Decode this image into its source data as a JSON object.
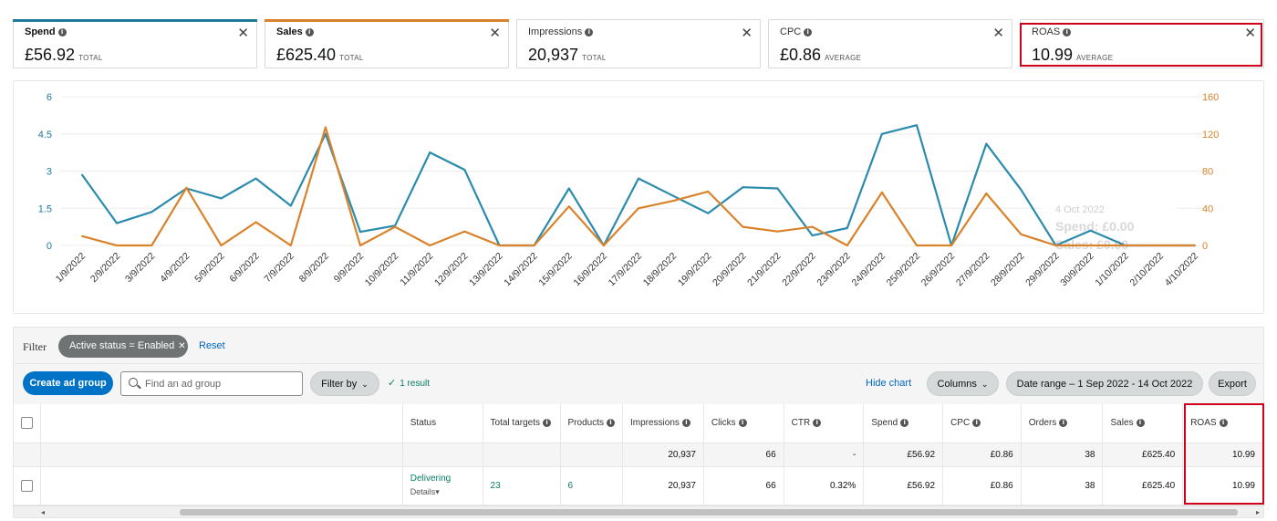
{
  "metrics": [
    {
      "label": "Spend",
      "value": "£56.92",
      "unit": "TOTAL",
      "bold": true,
      "color": "#1f7a9a"
    },
    {
      "label": "Sales",
      "value": "£625.40",
      "unit": "TOTAL",
      "bold": true,
      "color": "#d9822b"
    },
    {
      "label": "Impressions",
      "value": "20,937",
      "unit": "TOTAL",
      "bold": false,
      "color": ""
    },
    {
      "label": "CPC",
      "value": "£0.86",
      "unit": "AVERAGE",
      "bold": false,
      "color": ""
    },
    {
      "label": "ROAS",
      "value": "10.99",
      "unit": "AVERAGE",
      "bold": false,
      "color": ""
    }
  ],
  "chart_data": {
    "type": "line",
    "x": [
      "1/9/2022",
      "2/9/2022",
      "3/9/2022",
      "4/9/2022",
      "5/9/2022",
      "6/9/2022",
      "7/9/2022",
      "8/9/2022",
      "9/9/2022",
      "10/9/2022",
      "11/9/2022",
      "12/9/2022",
      "13/9/2022",
      "14/9/2022",
      "15/9/2022",
      "16/9/2022",
      "17/9/2022",
      "18/9/2022",
      "19/9/2022",
      "20/9/2022",
      "21/9/2022",
      "22/9/2022",
      "23/9/2022",
      "24/9/2022",
      "25/9/2022",
      "26/9/2022",
      "27/9/2022",
      "28/9/2022",
      "29/9/2022",
      "30/9/2022",
      "1/10/2022",
      "2/10/2022",
      "4/10/2022"
    ],
    "left_axis": {
      "ticks": [
        "6",
        "4.5",
        "3",
        "1.5",
        "0"
      ],
      "ylim": [
        0,
        6
      ],
      "color": "#1f7a9a"
    },
    "right_axis": {
      "ticks": [
        "160",
        "120",
        "80",
        "40",
        "0"
      ],
      "ylim": [
        0,
        160
      ],
      "color": "#d9822b"
    },
    "grid": true,
    "series": [
      {
        "name": "Spend",
        "axis": "left",
        "color": "#2b8bad",
        "values": [
          2.85,
          0.9,
          1.35,
          2.3,
          1.9,
          2.7,
          1.6,
          4.5,
          0.55,
          0.8,
          3.75,
          3.05,
          0,
          0,
          2.3,
          0,
          2.7,
          2.0,
          1.3,
          2.35,
          2.3,
          0.4,
          0.7,
          4.5,
          4.85,
          0,
          4.1,
          2.25,
          0,
          0.6,
          0,
          0,
          0
        ]
      },
      {
        "name": "Sales",
        "axis": "right",
        "color": "#d9822b",
        "values": [
          10,
          0,
          0,
          62,
          0,
          25,
          0,
          127,
          0,
          20,
          0,
          15,
          0,
          0,
          42,
          0,
          40,
          48,
          58,
          20,
          15,
          20,
          0,
          57,
          0,
          0,
          56,
          12,
          0,
          0,
          0,
          0,
          0
        ]
      }
    ],
    "tooltip": {
      "date": "4 Oct 2022",
      "lines": [
        "Spend: £0.00",
        "Sales: £0.00"
      ]
    }
  },
  "filter": {
    "label": "Filter",
    "chip": "Active status = Enabled",
    "reset": "Reset"
  },
  "toolbar": {
    "create": "Create ad group",
    "search_placeholder": "Find an ad group",
    "filter_by": "Filter by",
    "result": "1 result",
    "hide_chart": "Hide chart",
    "columns": "Columns",
    "date_range": "Date range – 1 Sep 2022 - 14 Oct 2022",
    "export": "Export"
  },
  "table": {
    "headers": [
      "Status",
      "Total targets",
      "Products",
      "Impressions",
      "Clicks",
      "CTR",
      "Spend",
      "CPC",
      "Orders",
      "Sales",
      "ROAS"
    ],
    "totals": [
      "",
      "",
      "",
      "20,937",
      "66",
      "-",
      "£56.92",
      "£0.86",
      "38",
      "£625.40",
      "10.99"
    ],
    "row": {
      "status": "Delivering",
      "details": "Details",
      "cells": [
        "",
        "23",
        "6",
        "20,937",
        "66",
        "0.32%",
        "£56.92",
        "£0.86",
        "38",
        "£625.40",
        "10.99"
      ]
    }
  }
}
